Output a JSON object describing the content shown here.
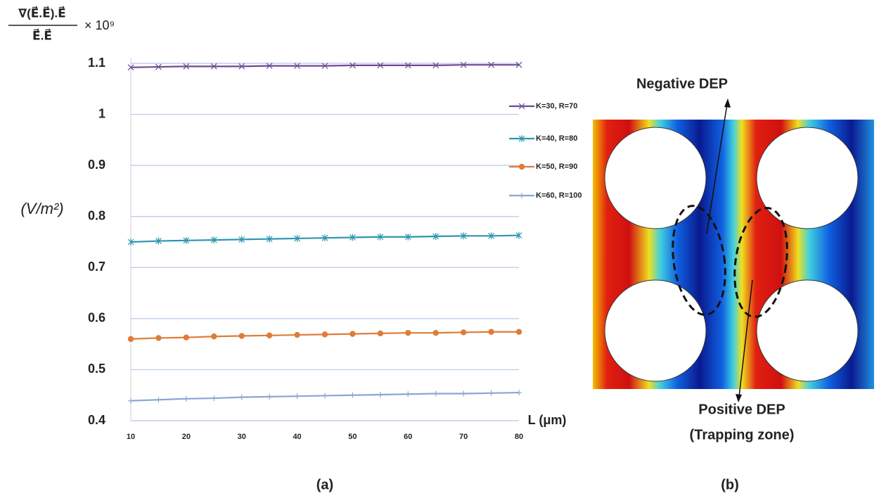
{
  "chart_data": {
    "type": "line",
    "y_label_numerator": "∇(E⃗.E⃗).E⃗",
    "y_label_denominator": "E⃗.E⃗",
    "y_label_multiplier": "× 10⁹",
    "y_label_unit": "(V/m²)",
    "x_label": "L (μm)",
    "panel_label": "(a)",
    "x": [
      10,
      15,
      20,
      25,
      30,
      35,
      40,
      45,
      50,
      55,
      60,
      65,
      70,
      75,
      80
    ],
    "xlim": [
      10,
      80
    ],
    "xticks": [
      10,
      20,
      30,
      40,
      50,
      60,
      70,
      80
    ],
    "ylim": [
      0.4,
      1.1
    ],
    "yticks": [
      0.4,
      0.5,
      0.6,
      0.7,
      0.8,
      0.9,
      1,
      1.1
    ],
    "grid": true,
    "legend": "right",
    "series": [
      {
        "name": "K=30, R=70",
        "color": "#6a4c93",
        "marker": "x",
        "values": [
          1.092,
          1.093,
          1.094,
          1.094,
          1.094,
          1.095,
          1.095,
          1.095,
          1.096,
          1.096,
          1.096,
          1.096,
          1.097,
          1.097,
          1.097
        ]
      },
      {
        "name": "K=40, R=80",
        "color": "#2e96b0",
        "marker": "star",
        "values": [
          0.75,
          0.752,
          0.753,
          0.754,
          0.755,
          0.756,
          0.757,
          0.758,
          0.759,
          0.76,
          0.76,
          0.761,
          0.762,
          0.762,
          0.763
        ]
      },
      {
        "name": "K=50, R=90",
        "color": "#e07b39",
        "marker": "circle",
        "values": [
          0.56,
          0.562,
          0.563,
          0.565,
          0.566,
          0.567,
          0.568,
          0.569,
          0.57,
          0.571,
          0.572,
          0.572,
          0.573,
          0.574,
          0.574
        ]
      },
      {
        "name": "K=60, R=100",
        "color": "#8aa6d6",
        "marker": "plus",
        "values": [
          0.439,
          0.441,
          0.443,
          0.444,
          0.446,
          0.447,
          0.448,
          0.449,
          0.45,
          0.451,
          0.452,
          0.453,
          0.453,
          0.454,
          0.455
        ]
      }
    ]
  },
  "field_map": {
    "negative_label": "Negative DEP",
    "positive_label": "Positive DEP",
    "positive_note": "(Trapping zone)",
    "panel_label": "(b)"
  }
}
